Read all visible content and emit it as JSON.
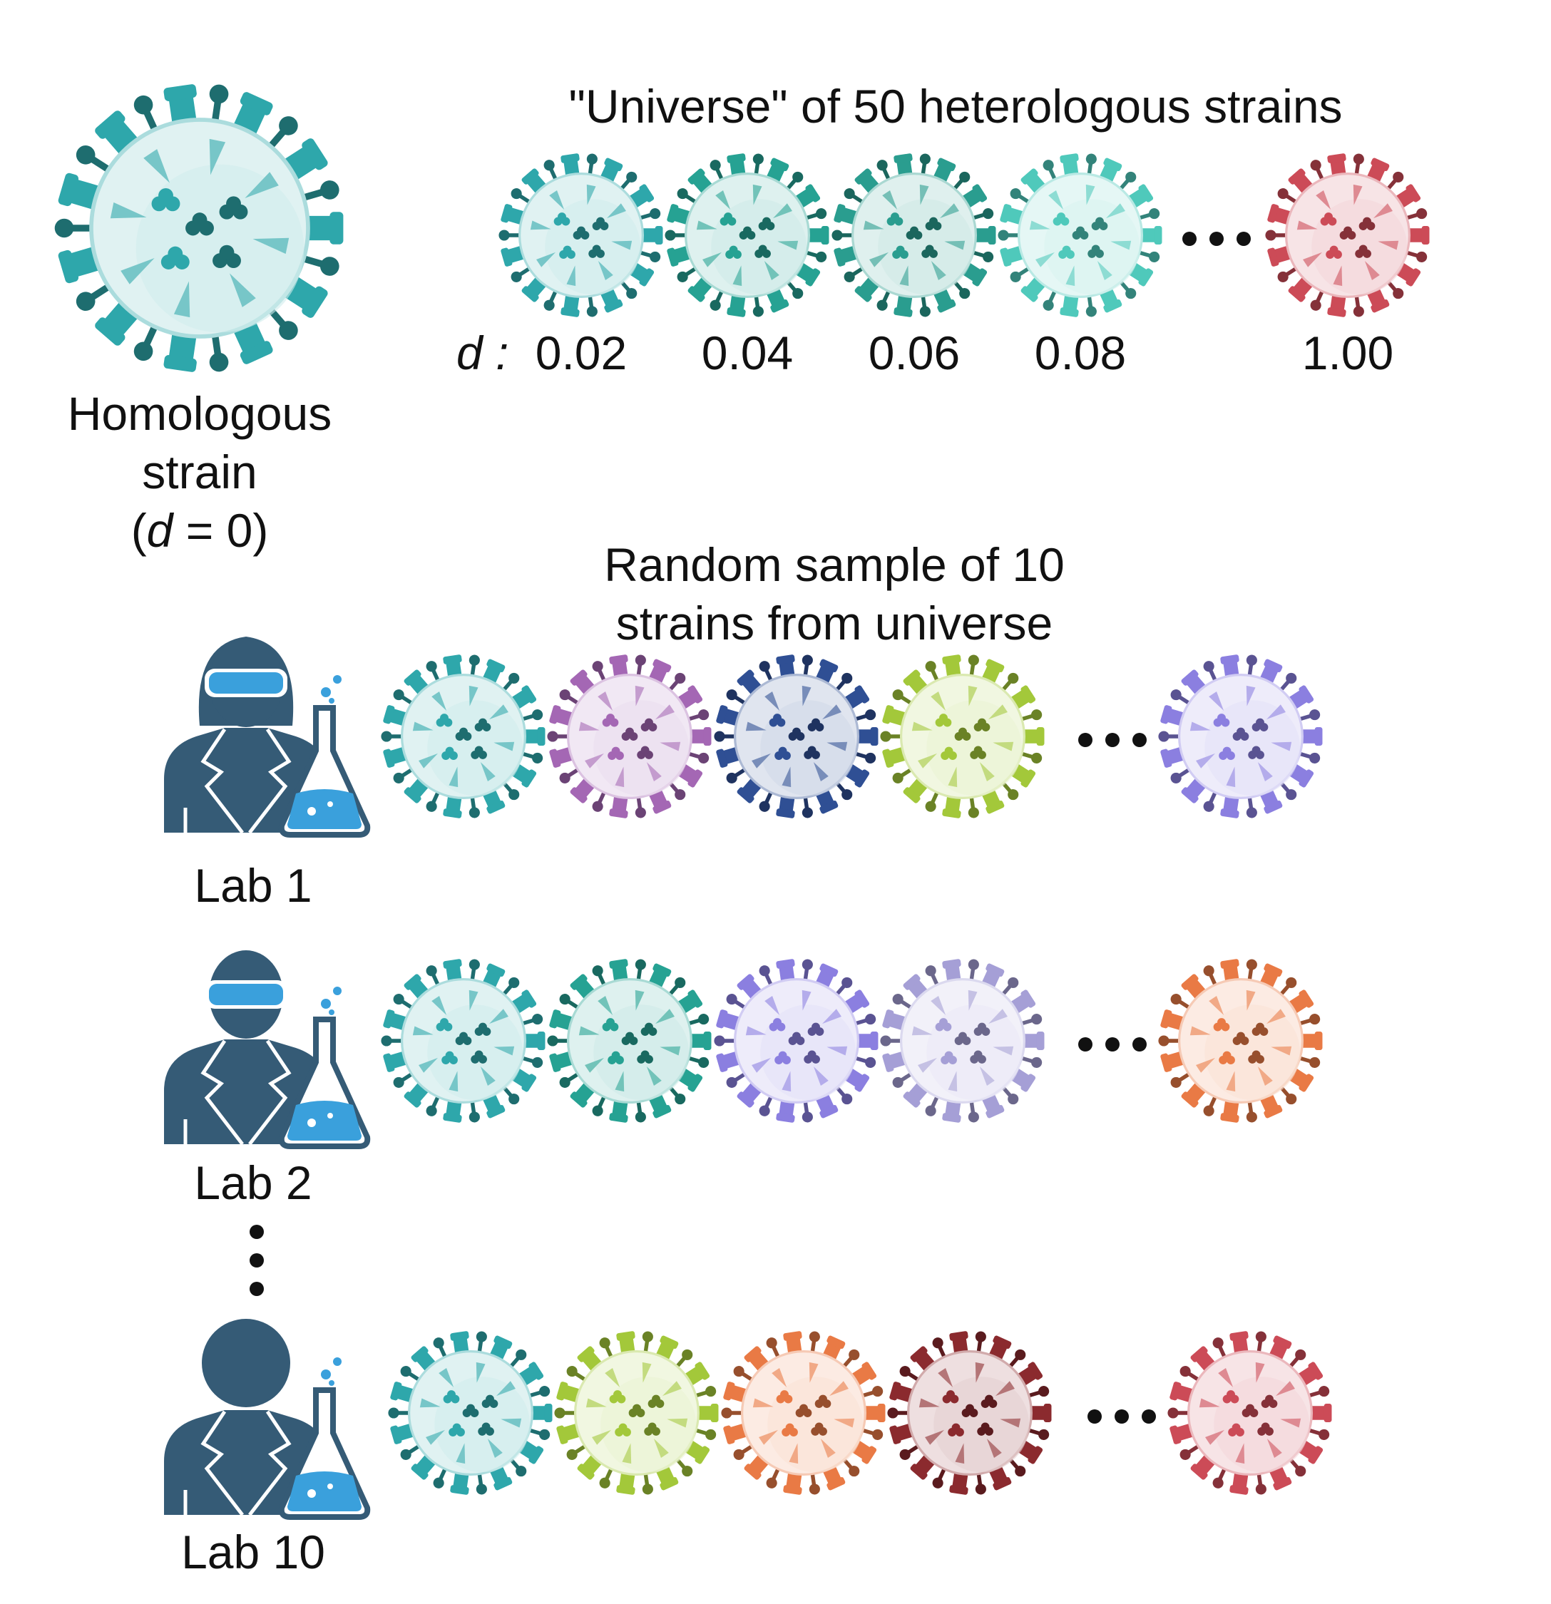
{
  "homologous": {
    "line1": "Homologous",
    "line2": "strain",
    "paren_open": "(",
    "d_symbol": "d",
    "equals_value": " = 0)",
    "color": "#2ea7ab"
  },
  "universe": {
    "title": "\"Universe\" of 50 heterologous strains",
    "d_label": "d :",
    "strains": [
      {
        "d": "0.02",
        "color": "#2ea7ab"
      },
      {
        "d": "0.04",
        "color": "#26a293"
      },
      {
        "d": "0.06",
        "color": "#2a9d8f"
      },
      {
        "d": "0.08",
        "color": "#4fc9bb"
      },
      {
        "d": "1.00",
        "color": "#cc4b57"
      }
    ]
  },
  "sample": {
    "title_line1": "Random sample of 10",
    "title_line2": "strains from universe"
  },
  "labs": [
    {
      "label": "Lab 1",
      "icon": "scientist-female-goggles-icon",
      "strains": [
        "#2ea7ab",
        "#a467b4",
        "#2f4f94",
        "#a3c83a",
        "#8b7fe0"
      ]
    },
    {
      "label": "Lab 2",
      "icon": "scientist-male-goggles-icon",
      "strains": [
        "#2ea7ab",
        "#26a293",
        "#8b7fe0",
        "#a59fd6",
        "#e97a45"
      ]
    },
    {
      "label": "Lab 10",
      "icon": "scientist-generic-icon",
      "strains": [
        "#2ea7ab",
        "#a3c83a",
        "#e97a45",
        "#8b2a2e",
        "#cc4b57"
      ]
    }
  ],
  "colors": {
    "person": "#355b76",
    "goggles": "#3aa0dc",
    "flask_liquid": "#3aa0dc",
    "text": "#111111"
  }
}
